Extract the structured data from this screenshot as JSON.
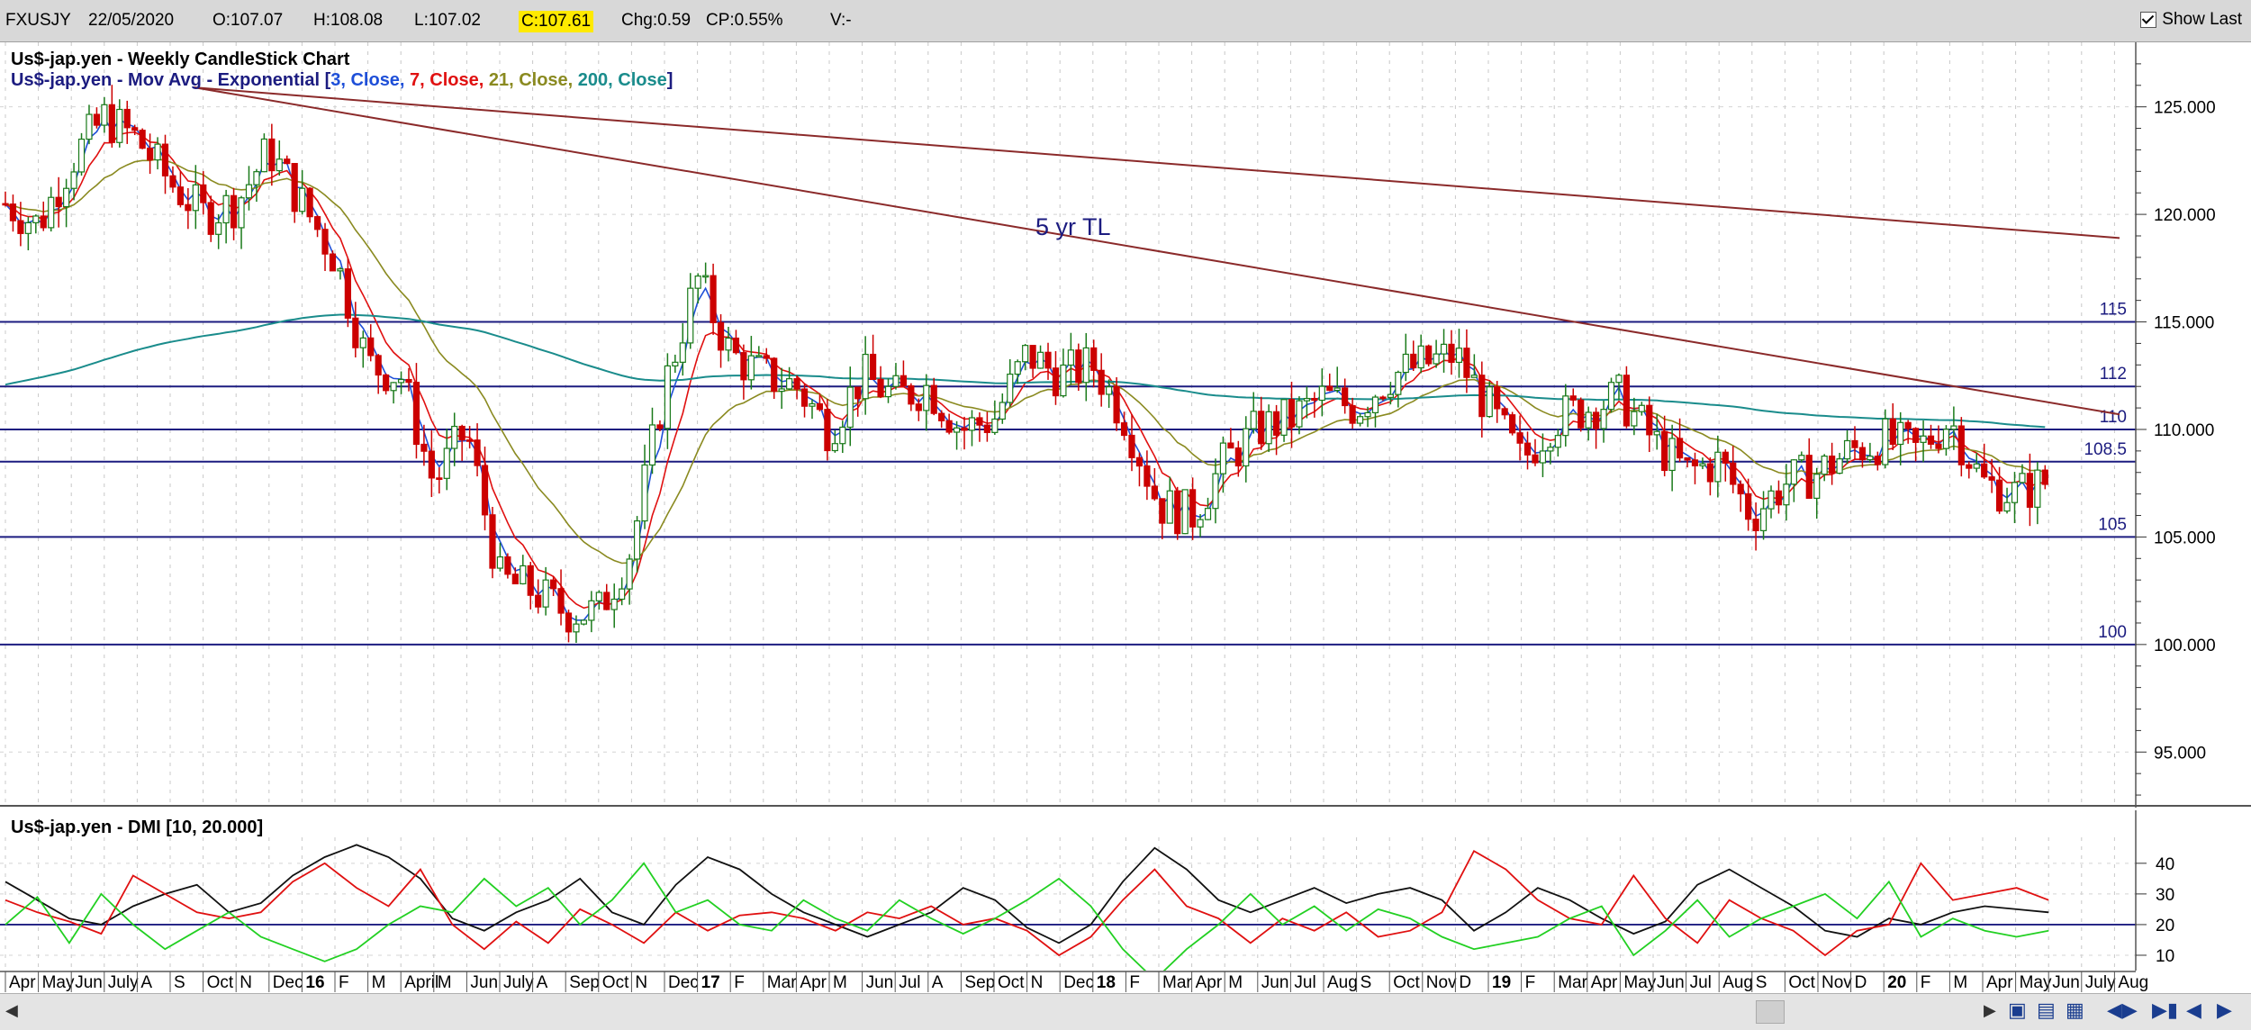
{
  "header": {
    "symbol": "FXUSJY",
    "date": "22/05/2020",
    "open": "O:107.07",
    "high": "H:108.08",
    "low": "L:107.02",
    "close": "C:107.61",
    "change": "Chg:0.59",
    "change_pct": "CP:0.55%",
    "volume": "V:-",
    "show_last_label": "Show Last",
    "show_last_checked": true
  },
  "chart_data": [
    {
      "type": "candlestick",
      "title": "Us$-jap.yen - Weekly CandleStick Chart",
      "legend_prefix": "Us$-jap.yen - Mov Avg - Exponential [",
      "legend_suffix": "]",
      "moving_averages": [
        {
          "label": "3, Close",
          "color": "#1e4fd8",
          "sep": ", "
        },
        {
          "label": "7, Close",
          "color": "#e01010",
          "sep": ", "
        },
        {
          "label": "21, Close",
          "color": "#8a8a20",
          "sep": ", "
        },
        {
          "label": "200, Close",
          "color": "#1a8c8c",
          "sep": ""
        }
      ],
      "ylim": [
        92.5,
        128
      ],
      "y_ticks": [
        "125.000",
        "120.000",
        "115.000",
        "110.000",
        "105.000",
        "100.000",
        "95.000"
      ],
      "y_tick_values": [
        125,
        120,
        115,
        110,
        105,
        100,
        95
      ],
      "horizontal_levels": [
        {
          "value": 115,
          "label": "115"
        },
        {
          "value": 112,
          "label": "112"
        },
        {
          "value": 110,
          "label": "110"
        },
        {
          "value": 108.5,
          "label": "108.5"
        },
        {
          "value": 105,
          "label": "105"
        },
        {
          "value": 100,
          "label": "100"
        }
      ],
      "trendlines": [
        {
          "label": "5 yr TL",
          "from": [
            "2015-06",
            125.9
          ],
          "to": [
            "2020-08",
            110.7
          ]
        },
        {
          "label": "",
          "from": [
            "2015-06",
            125.9
          ],
          "to": [
            "2020-08",
            118.9
          ]
        }
      ],
      "x_labels": [
        "Apr",
        "May",
        "Jun",
        "July",
        "A",
        "S",
        "Oct",
        "N",
        "Dec",
        "16",
        "F",
        "M",
        "April",
        "M",
        "Jun",
        "July",
        "A",
        "Sep",
        "Oct",
        "N",
        "Dec",
        "17",
        "F",
        "Mar",
        "Apr",
        "M",
        "Jun",
        "Jul",
        "A",
        "Sep",
        "Oct",
        "N",
        "Dec",
        "18",
        "F",
        "Mar",
        "Apr",
        "M",
        "Jun",
        "Jul",
        "Aug",
        "S",
        "Oct",
        "Nov",
        "D",
        "19",
        "F",
        "Mar",
        "Apr",
        "May",
        "Jun",
        "Jul",
        "Aug",
        "S",
        "Oct",
        "Nov",
        "D",
        "20",
        "F",
        "M",
        "Apr",
        "May",
        "Jun",
        "July",
        "Aug"
      ],
      "x_label_bold": [
        "16",
        "17",
        "18",
        "19",
        "20"
      ],
      "price_path": [
        {
          "date": "2015-03",
          "close": 120.5
        },
        {
          "date": "2015-04",
          "close": 119.5
        },
        {
          "date": "2015-05",
          "close": 122.5
        },
        {
          "date": "2015-06",
          "close": 124.5
        },
        {
          "date": "2015-07",
          "close": 123.5
        },
        {
          "date": "2015-08",
          "close": 121.5
        },
        {
          "date": "2015-09",
          "close": 120.0
        },
        {
          "date": "2015-10",
          "close": 120.5
        },
        {
          "date": "2015-11",
          "close": 123.0
        },
        {
          "date": "2015-12",
          "close": 120.5
        },
        {
          "date": "2016-01",
          "close": 118.0
        },
        {
          "date": "2016-02",
          "close": 113.0
        },
        {
          "date": "2016-03",
          "close": 112.5
        },
        {
          "date": "2016-04",
          "close": 107.5
        },
        {
          "date": "2016-05",
          "close": 110.0
        },
        {
          "date": "2016-06",
          "close": 103.0
        },
        {
          "date": "2016-07",
          "close": 102.5
        },
        {
          "date": "2016-08",
          "close": 101.5
        },
        {
          "date": "2016-09",
          "close": 101.5
        },
        {
          "date": "2016-10",
          "close": 104.5
        },
        {
          "date": "2016-11",
          "close": 112.0
        },
        {
          "date": "2016-12",
          "close": 117.0
        },
        {
          "date": "2017-01",
          "close": 113.5
        },
        {
          "date": "2017-02",
          "close": 112.5
        },
        {
          "date": "2017-03",
          "close": 112.0
        },
        {
          "date": "2017-04",
          "close": 110.0
        },
        {
          "date": "2017-05",
          "close": 112.5
        },
        {
          "date": "2017-06",
          "close": 111.5
        },
        {
          "date": "2017-07",
          "close": 112.0
        },
        {
          "date": "2017-08",
          "close": 110.0
        },
        {
          "date": "2017-09",
          "close": 110.5
        },
        {
          "date": "2017-10",
          "close": 113.5
        },
        {
          "date": "2017-11",
          "close": 112.5
        },
        {
          "date": "2017-12",
          "close": 113.0
        },
        {
          "date": "2018-01",
          "close": 110.5
        },
        {
          "date": "2018-02",
          "close": 106.5
        },
        {
          "date": "2018-03",
          "close": 106.0
        },
        {
          "date": "2018-04",
          "close": 108.5
        },
        {
          "date": "2018-05",
          "close": 110.0
        },
        {
          "date": "2018-06",
          "close": 110.5
        },
        {
          "date": "2018-07",
          "close": 111.5
        },
        {
          "date": "2018-08",
          "close": 111.0
        },
        {
          "date": "2018-09",
          "close": 112.5
        },
        {
          "date": "2018-10",
          "close": 113.0
        },
        {
          "date": "2018-11",
          "close": 113.5
        },
        {
          "date": "2018-12",
          "close": 111.0
        },
        {
          "date": "2019-01",
          "close": 108.5
        },
        {
          "date": "2019-02",
          "close": 110.5
        },
        {
          "date": "2019-03",
          "close": 111.0
        },
        {
          "date": "2019-04",
          "close": 111.5
        },
        {
          "date": "2019-05",
          "close": 109.5
        },
        {
          "date": "2019-06",
          "close": 108.0
        },
        {
          "date": "2019-07",
          "close": 108.5
        },
        {
          "date": "2019-08",
          "close": 106.0
        },
        {
          "date": "2019-09",
          "close": 107.5
        },
        {
          "date": "2019-10",
          "close": 108.0
        },
        {
          "date": "2019-11",
          "close": 109.0
        },
        {
          "date": "2019-12",
          "close": 109.5
        },
        {
          "date": "2020-01",
          "close": 109.0
        },
        {
          "date": "2020-02",
          "close": 110.5
        },
        {
          "date": "2020-03",
          "close": 107.5
        },
        {
          "date": "2020-04",
          "close": 107.0
        },
        {
          "date": "2020-05",
          "close": 107.6
        }
      ],
      "grid": true,
      "legend_position": "top-left"
    },
    {
      "type": "line",
      "title": "Us$-jap.yen - DMI [10, 20.000]",
      "ylim": [
        5,
        47
      ],
      "y_ticks": [
        "40",
        "30",
        "20",
        "10"
      ],
      "y_tick_values": [
        40,
        30,
        20,
        10
      ],
      "threshold": 20,
      "series": [
        {
          "color": "#111111",
          "values": [
            34,
            28,
            22,
            20,
            26,
            30,
            33,
            24,
            27,
            36,
            42,
            46,
            42,
            35,
            22,
            18,
            24,
            28,
            35,
            24,
            20,
            33,
            42,
            38,
            30,
            24,
            20,
            16,
            20,
            24,
            32,
            28,
            19,
            14,
            20,
            34,
            45,
            38,
            28,
            24,
            28,
            32,
            27,
            30,
            32,
            28,
            18,
            24,
            32,
            28,
            22,
            17,
            21,
            33,
            38,
            32,
            26,
            18,
            16,
            22,
            20,
            24,
            26,
            25,
            24
          ]
        },
        {
          "color": "#e01010",
          "values": [
            28,
            24,
            21,
            17,
            36,
            30,
            24,
            22,
            24,
            34,
            40,
            32,
            26,
            38,
            20,
            12,
            21,
            14,
            25,
            20,
            14,
            24,
            18,
            23,
            24,
            22,
            18,
            24,
            22,
            26,
            20,
            22,
            18,
            10,
            16,
            28,
            38,
            26,
            22,
            14,
            22,
            18,
            24,
            16,
            18,
            24,
            44,
            38,
            28,
            22,
            20,
            36,
            22,
            14,
            28,
            22,
            18,
            10,
            18,
            20,
            40,
            28,
            30,
            32,
            28
          ]
        },
        {
          "color": "#22d022",
          "values": [
            20,
            29,
            14,
            30,
            20,
            12,
            18,
            24,
            16,
            12,
            8,
            12,
            20,
            26,
            24,
            35,
            26,
            32,
            20,
            28,
            40,
            24,
            28,
            20,
            18,
            28,
            22,
            18,
            28,
            22,
            17,
            22,
            28,
            35,
            26,
            12,
            2,
            12,
            20,
            30,
            20,
            26,
            18,
            25,
            22,
            16,
            12,
            14,
            16,
            22,
            26,
            10,
            18,
            28,
            16,
            22,
            26,
            30,
            22,
            34,
            16,
            22,
            18,
            16,
            18
          ]
        }
      ]
    }
  ]
}
